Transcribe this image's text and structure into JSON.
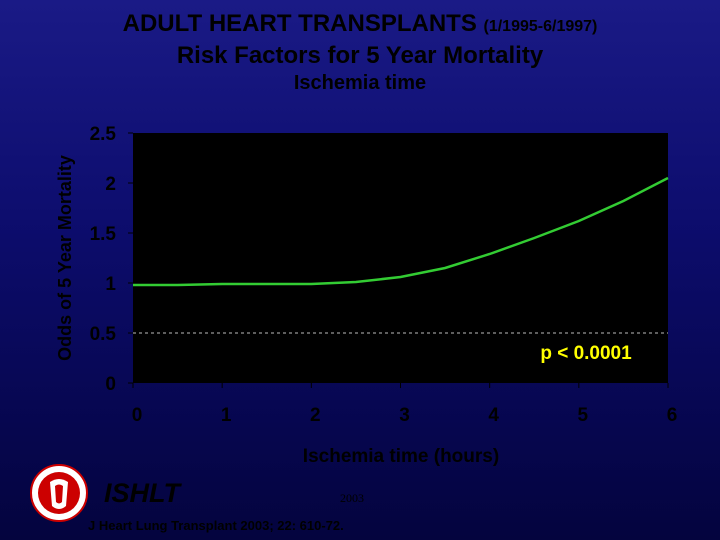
{
  "header": {
    "title_main": "ADULT HEART TRANSPLANTS",
    "title_dates": "(1/1995-6/1997)",
    "title_line2": "Risk Factors for 5 Year Mortality",
    "subtitle": "Ischemia time"
  },
  "chart_data": {
    "type": "line",
    "title": "Risk Factors for 5 Year Mortality",
    "subtitle": "Ischemia time",
    "xlabel": "Ischemia time (hours)",
    "ylabel": "Odds of 5 Year Mortality",
    "xlim": [
      0,
      6
    ],
    "ylim": [
      0,
      2.5
    ],
    "x_ticks": [
      "0",
      "1",
      "2",
      "3",
      "4",
      "5",
      "6"
    ],
    "y_ticks": [
      "0",
      "0.5",
      "1",
      "1.5",
      "2",
      "2.5"
    ],
    "grid": false,
    "series": [
      {
        "x": [
          0,
          0.5,
          1,
          1.5,
          2,
          2.5,
          3,
          3.5,
          4,
          4.5,
          5,
          5.5,
          6
        ],
        "y": [
          0.98,
          0.98,
          0.99,
          0.99,
          0.99,
          1.01,
          1.06,
          1.15,
          1.29,
          1.45,
          1.62,
          1.82,
          2.05
        ],
        "color": "#33cc33"
      }
    ],
    "reference_line": {
      "y": 0.5,
      "style": "dashed"
    },
    "annotation": "p < 0.0001",
    "colors": {
      "plot_background": "#000000",
      "line": "#33cc33",
      "annotation": "#ffff00",
      "text": "#000000"
    }
  },
  "footer": {
    "ishlt": "ISHLT",
    "year": "2003",
    "citation": "J Heart Lung Transplant 2003; 22: 610-72."
  },
  "icons": {
    "logo": "ishlt-logo-icon"
  }
}
